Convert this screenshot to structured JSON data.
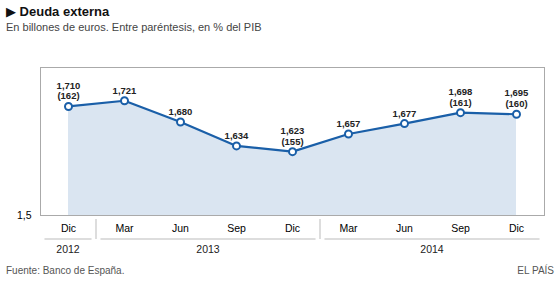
{
  "chart_data": {
    "type": "area",
    "title": "▶ Deuda externa",
    "subtitle": "En billones de euros. Entre paréntesis, en % del PIB",
    "categories": [
      "Dic",
      "Mar",
      "Jun",
      "Sep",
      "Dic",
      "Mar",
      "Jun",
      "Sep",
      "Dic"
    ],
    "year_groups": [
      {
        "label": "2012",
        "start": 0,
        "end": 0
      },
      {
        "label": "2013",
        "start": 1,
        "end": 4
      },
      {
        "label": "2014",
        "start": 5,
        "end": 8
      }
    ],
    "values": [
      1.71,
      1.721,
      1.68,
      1.634,
      1.623,
      1.657,
      1.677,
      1.698,
      1.695
    ],
    "value_labels": [
      "1,710",
      "1,721",
      "1,680",
      "1,634",
      "1,623",
      "1,657",
      "1,677",
      "1,698",
      "1,695"
    ],
    "pct_labels": [
      "(162)",
      null,
      null,
      null,
      "(155)",
      null,
      null,
      "(161)",
      "(160)"
    ],
    "data_labels": true,
    "color": "#1a5fa8",
    "marker": "circle",
    "ylim": [
      1.5,
      1.785
    ],
    "yticks": [
      {
        "value": 1.5,
        "label": "1,5"
      }
    ],
    "grid": false,
    "source": "Fuente: Banco de España.",
    "brand": "EL PAÍS"
  }
}
